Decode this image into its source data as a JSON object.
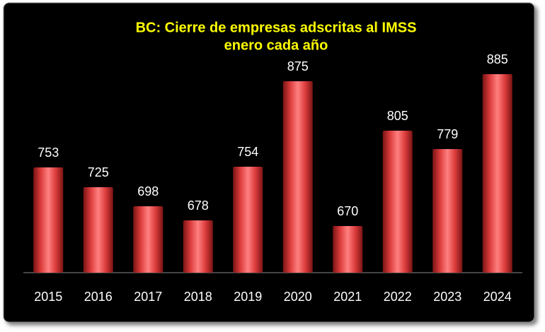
{
  "chart_data": {
    "type": "bar",
    "title": "BC: Cierre de empresas adscritas al IMSS",
    "subtitle": "enero cada año",
    "categories": [
      "2015",
      "2016",
      "2017",
      "2018",
      "2019",
      "2020",
      "2021",
      "2022",
      "2023",
      "2024"
    ],
    "values": [
      753,
      725,
      698,
      678,
      754,
      875,
      670,
      805,
      779,
      885
    ],
    "color": "#dc3c3c",
    "ylim": [
      604,
      900
    ]
  }
}
